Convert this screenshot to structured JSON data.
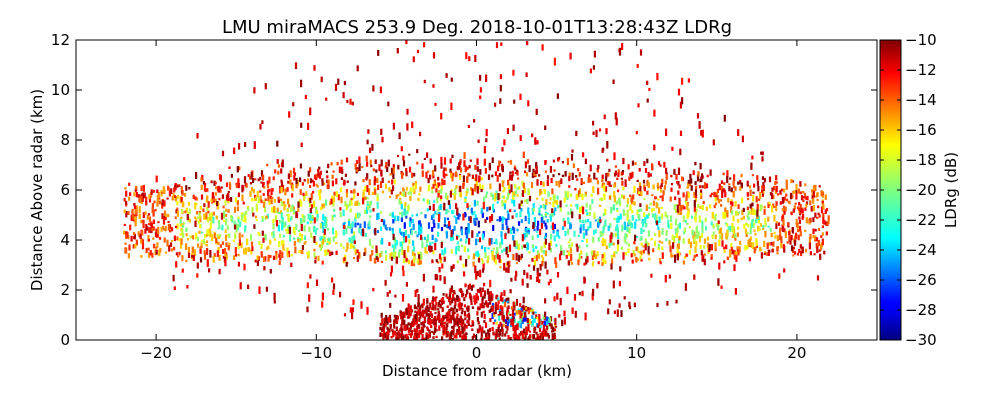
{
  "chart_data": {
    "type": "heatmap",
    "title": "LMU miraMACS 253.9 Deg. 2018-10-01T13:28:43Z  LDRg",
    "xlabel": "Distance from radar (km)",
    "ylabel": "Distance Above radar  (km)",
    "xlim": [
      -25,
      25
    ],
    "ylim": [
      0,
      12
    ],
    "xticks": [
      -20,
      -10,
      0,
      10,
      20
    ],
    "yticks": [
      0,
      2,
      4,
      6,
      8,
      10,
      12
    ],
    "colorbar": {
      "label": "LDRg (dB)",
      "range": [
        -30,
        -10
      ],
      "ticks": [
        -10,
        -12,
        -14,
        -16,
        -18,
        -20,
        -22,
        -24,
        -26,
        -28,
        -30
      ],
      "colormap": "jet"
    },
    "grid": false,
    "regions": [
      {
        "kind": "cloud-layer",
        "x_range": [
          -22,
          22
        ],
        "height_range_km": [
          3.0,
          7.5
        ],
        "ldr_db_typical": [
          -28,
          -12
        ]
      },
      {
        "kind": "low-echo",
        "x_range": [
          -6,
          5
        ],
        "height_range_km": [
          0,
          2.3
        ],
        "ldr_db_typical": [
          -12,
          -10
        ]
      },
      {
        "kind": "sparse-speckle",
        "x_range": [
          -21,
          21
        ],
        "height_range_km": [
          0,
          12
        ],
        "ldr_db_typical": [
          -12,
          -10
        ]
      }
    ]
  }
}
